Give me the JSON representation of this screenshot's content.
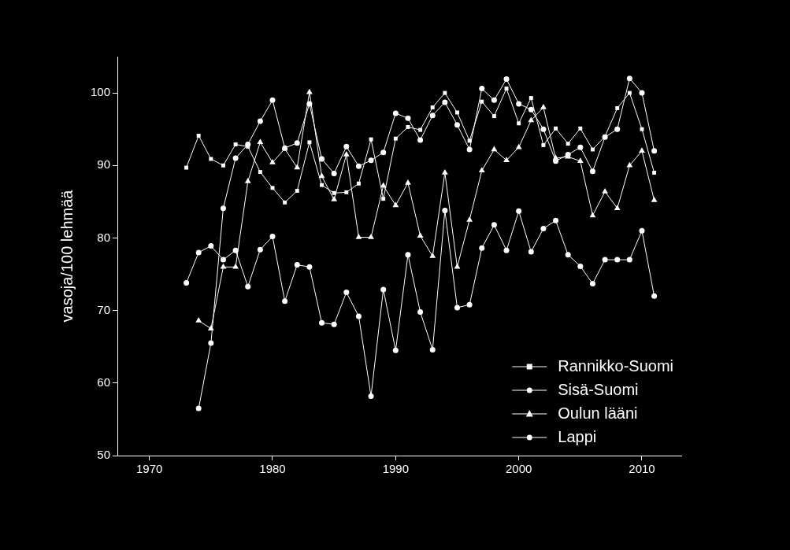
{
  "chart_data": {
    "type": "line",
    "y_label": "vasoja/100 lehmää",
    "x": [
      1973,
      1974,
      1975,
      1976,
      1977,
      1978,
      1979,
      1980,
      1981,
      1982,
      1983,
      1984,
      1985,
      1986,
      1987,
      1988,
      1989,
      1990,
      1991,
      1992,
      1993,
      1994,
      1995,
      1996,
      1997,
      1998,
      1999,
      2000,
      2001,
      2002,
      2003,
      2004,
      2005,
      2006,
      2007,
      2008,
      2009,
      2010,
      2011
    ],
    "series": [
      {
        "name": "Rannikko-Suomi",
        "color": "#ffffff",
        "marker": "square",
        "values": [
          89.7,
          94.1,
          90.9,
          90.0,
          92.9,
          92.6,
          89.1,
          86.9,
          84.9,
          86.5,
          93.2,
          87.3,
          86.2,
          86.3,
          87.5,
          93.6,
          85.4,
          93.7,
          95.3,
          94.9,
          98.0,
          100.0,
          97.3,
          93.4,
          98.8,
          96.8,
          100.6,
          95.8,
          99.3,
          92.8,
          95.1,
          93.0,
          95.1,
          92.2,
          94.0,
          97.9,
          100.0,
          95.0,
          89.0
        ]
      },
      {
        "name": "Sisä-Suomi",
        "color": "#ffffff",
        "marker": "circle",
        "values": [
          null,
          56.5,
          65.5,
          84.1,
          91.0,
          92.9,
          96.1,
          99.0,
          92.4,
          93.1,
          98.5,
          90.9,
          88.9,
          92.6,
          89.9,
          90.7,
          91.8,
          97.2,
          96.5,
          93.5,
          96.9,
          98.7,
          95.6,
          92.2,
          100.6,
          99.0,
          101.9,
          98.5,
          97.7,
          95.0,
          90.6,
          91.5,
          92.5,
          89.2,
          93.9,
          95.0,
          102.0,
          100.0,
          92.0
        ]
      },
      {
        "name": "Oulun lääni",
        "color": "#ffffff",
        "marker": "triangle",
        "values": [
          null,
          68.6,
          67.5,
          76.0,
          76.0,
          87.8,
          93.2,
          90.4,
          92.3,
          89.7,
          100.1,
          88.5,
          85.3,
          91.5,
          80.1,
          80.1,
          87.2,
          84.5,
          87.6,
          80.3,
          77.5,
          89.0,
          76.0,
          82.5,
          89.3,
          92.2,
          90.7,
          92.5,
          96.2,
          98.0,
          91.0,
          91.2,
          90.6,
          83.1,
          86.4,
          84.1,
          90.0,
          92.0,
          85.2
        ]
      },
      {
        "name": "Lappi",
        "color": "#ffffff",
        "marker": "circle",
        "values": [
          73.8,
          78.0,
          78.9,
          77.0,
          78.3,
          73.3,
          78.4,
          80.2,
          71.3,
          76.3,
          76.0,
          68.3,
          68.1,
          72.5,
          69.2,
          58.2,
          72.9,
          64.5,
          77.7,
          69.8,
          64.6,
          83.8,
          70.4,
          70.8,
          78.6,
          81.8,
          78.3,
          83.7,
          78.1,
          81.3,
          82.4,
          77.7,
          76.1,
          73.7,
          77.0,
          77.0,
          77.0,
          81.0,
          72.0
        ]
      }
    ],
    "xlim": [
      1967.4,
      2013.2
    ],
    "xticks": [
      1970,
      1980,
      1990,
      2000,
      2010
    ],
    "ylim": [
      50,
      105
    ],
    "yticks": [
      50,
      60,
      70,
      80,
      90,
      100
    ],
    "grid": false,
    "legend": "lower right"
  }
}
